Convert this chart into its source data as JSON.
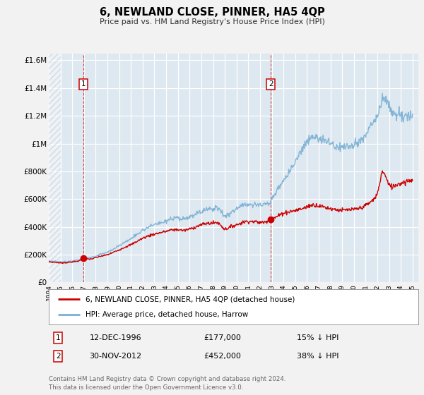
{
  "title": "6, NEWLAND CLOSE, PINNER, HA5 4QP",
  "subtitle": "Price paid vs. HM Land Registry's House Price Index (HPI)",
  "ylim": [
    0,
    1650000
  ],
  "xlim_start": 1994.0,
  "xlim_end": 2025.5,
  "background_color": "#f2f2f2",
  "plot_bg_color": "#dde8f0",
  "grid_color": "#ffffff",
  "hpi_color": "#7ab0d4",
  "price_color": "#cc0000",
  "sale1_date": 1996.96,
  "sale1_price": 177000,
  "sale2_date": 2012.92,
  "sale2_price": 452000,
  "legend_label_price": "6, NEWLAND CLOSE, PINNER, HA5 4QP (detached house)",
  "legend_label_hpi": "HPI: Average price, detached house, Harrow",
  "annotation1_date": "12-DEC-1996",
  "annotation1_price": "£177,000",
  "annotation1_pct": "15% ↓ HPI",
  "annotation2_date": "30-NOV-2012",
  "annotation2_price": "£452,000",
  "annotation2_pct": "38% ↓ HPI",
  "footer": "Contains HM Land Registry data © Crown copyright and database right 2024.\nThis data is licensed under the Open Government Licence v3.0.",
  "yticks": [
    0,
    200000,
    400000,
    600000,
    800000,
    1000000,
    1200000,
    1400000,
    1600000
  ],
  "ytick_labels": [
    "£0",
    "£200K",
    "£400K",
    "£600K",
    "£800K",
    "£1M",
    "£1.2M",
    "£1.4M",
    "£1.6M"
  ]
}
